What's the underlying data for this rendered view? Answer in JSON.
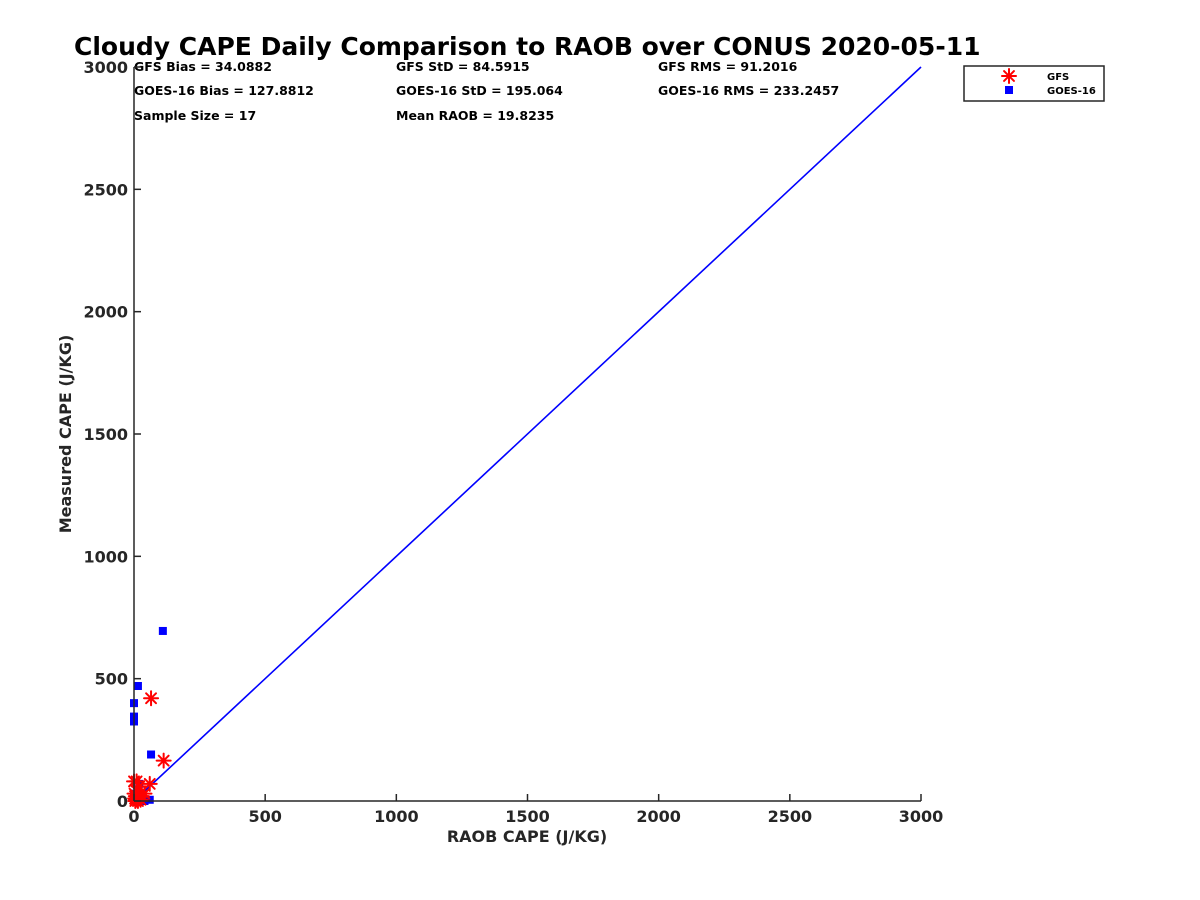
{
  "chart_data": {
    "type": "scatter",
    "title": "Cloudy CAPE Daily Comparison to RAOB over CONUS 2020-05-11",
    "xlabel": "RAOB CAPE (J/KG)",
    "ylabel": "Measured CAPE (J/KG)",
    "xlim": [
      0,
      3000
    ],
    "ylim": [
      0,
      3000
    ],
    "xticks": [
      0,
      500,
      1000,
      1500,
      2000,
      2500,
      3000
    ],
    "yticks": [
      0,
      500,
      1000,
      1500,
      2000,
      2500,
      3000
    ],
    "grid": false,
    "legend_position": "top-right",
    "reference_line": {
      "x": [
        0,
        3000
      ],
      "y": [
        0,
        3000
      ],
      "color": "#0000ff"
    },
    "stats": [
      [
        "GFS Bias = 34.0882",
        "GFS StD = 84.5915",
        "GFS RMS = 91.2016"
      ],
      [
        "GOES-16 Bias = 127.8812",
        "GOES-16 StD = 195.064",
        "GOES-16 RMS = 233.2457"
      ],
      [
        "Sample Size = 17",
        "Mean RAOB = 19.8235",
        ""
      ]
    ],
    "series": [
      {
        "name": "GFS",
        "marker": "asterisk",
        "color": "#ff0000",
        "points": [
          [
            0,
            80
          ],
          [
            2,
            30
          ],
          [
            4,
            10
          ],
          [
            5,
            0
          ],
          [
            7,
            20
          ],
          [
            8,
            5
          ],
          [
            10,
            80
          ],
          [
            12,
            40
          ],
          [
            15,
            0
          ],
          [
            18,
            15
          ],
          [
            20,
            60
          ],
          [
            25,
            5
          ],
          [
            30,
            20
          ],
          [
            40,
            30
          ],
          [
            60,
            70
          ],
          [
            65,
            420
          ],
          [
            113,
            165
          ]
        ]
      },
      {
        "name": "GOES-16",
        "marker": "square",
        "color": "#0000ff",
        "points": [
          [
            0,
            400
          ],
          [
            0,
            345
          ],
          [
            0,
            325
          ],
          [
            0,
            20
          ],
          [
            2,
            5
          ],
          [
            5,
            30
          ],
          [
            10,
            10
          ],
          [
            12,
            0
          ],
          [
            15,
            470
          ],
          [
            15,
            15
          ],
          [
            20,
            70
          ],
          [
            25,
            5
          ],
          [
            30,
            10
          ],
          [
            40,
            0
          ],
          [
            60,
            5
          ],
          [
            65,
            190
          ],
          [
            110,
            695
          ]
        ]
      }
    ]
  }
}
